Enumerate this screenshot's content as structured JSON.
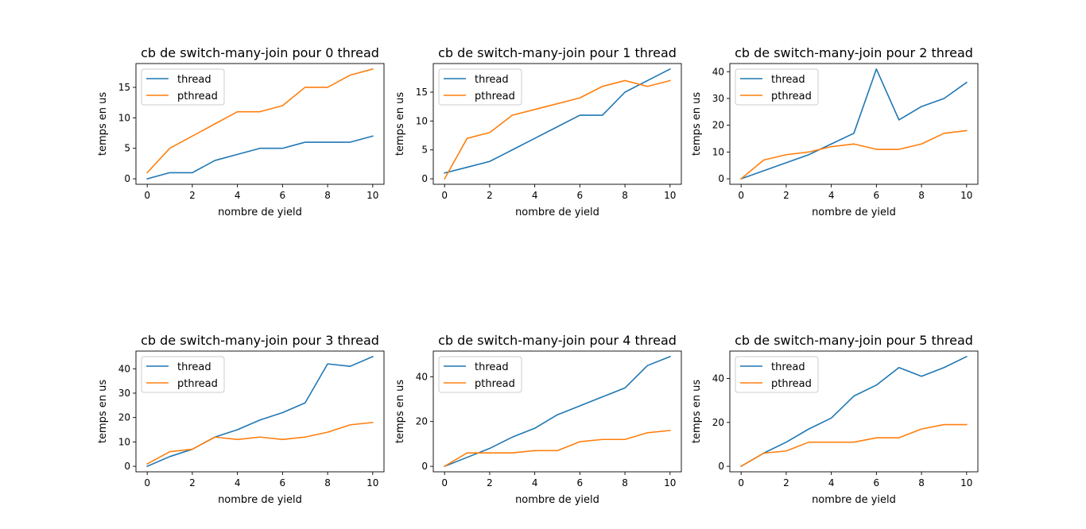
{
  "colors": {
    "thread": "#1f77b4",
    "pthread": "#ff7f0e"
  },
  "chart_data": [
    {
      "type": "line",
      "title": "cb de switch-many-join pour 0 thread",
      "xlabel": "nombre de yield",
      "ylabel": "temps en us",
      "x": [
        0,
        1,
        2,
        3,
        4,
        5,
        6,
        7,
        8,
        9,
        10
      ],
      "xticks": [
        0,
        2,
        4,
        6,
        8,
        10
      ],
      "yticks": [
        0,
        5,
        10,
        15
      ],
      "ylim": [
        -0.9,
        18.9
      ],
      "legend": "upper-left",
      "grid": false,
      "series": [
        {
          "name": "thread",
          "values": [
            0,
            1,
            1,
            3,
            4,
            5,
            5,
            6,
            6,
            6,
            7
          ]
        },
        {
          "name": "pthread",
          "values": [
            1,
            5,
            7,
            9,
            11,
            11,
            12,
            15,
            15,
            17,
            18
          ]
        }
      ]
    },
    {
      "type": "line",
      "title": "cb de switch-many-join pour 1 thread",
      "xlabel": "nombre de yield",
      "ylabel": "temps en us",
      "x": [
        0,
        1,
        2,
        3,
        4,
        5,
        6,
        7,
        8,
        9,
        10
      ],
      "xticks": [
        0,
        2,
        4,
        6,
        8,
        10
      ],
      "yticks": [
        0,
        5,
        10,
        15
      ],
      "ylim": [
        -0.95,
        19.95
      ],
      "legend": "upper-left",
      "grid": false,
      "series": [
        {
          "name": "thread",
          "values": [
            1,
            2,
            3,
            5,
            7,
            9,
            11,
            11,
            15,
            17,
            19
          ]
        },
        {
          "name": "pthread",
          "values": [
            0,
            7,
            8,
            11,
            12,
            13,
            14,
            16,
            17,
            16,
            17
          ]
        }
      ]
    },
    {
      "type": "line",
      "title": "cb de switch-many-join pour 2 thread",
      "xlabel": "nombre de yield",
      "ylabel": "temps en us",
      "x": [
        0,
        1,
        2,
        3,
        4,
        5,
        6,
        7,
        8,
        9,
        10
      ],
      "xticks": [
        0,
        2,
        4,
        6,
        8,
        10
      ],
      "yticks": [
        0,
        10,
        20,
        30,
        40
      ],
      "ylim": [
        -2.05,
        43.05
      ],
      "legend": "upper-left",
      "grid": false,
      "series": [
        {
          "name": "thread",
          "values": [
            0,
            3,
            6,
            9,
            13,
            17,
            41,
            22,
            27,
            30,
            36
          ]
        },
        {
          "name": "pthread",
          "values": [
            0,
            7,
            9,
            10,
            12,
            13,
            11,
            11,
            13,
            17,
            18
          ]
        }
      ]
    },
    {
      "type": "line",
      "title": "cb de switch-many-join pour 3 thread",
      "xlabel": "nombre de yield",
      "ylabel": "temps en us",
      "x": [
        0,
        1,
        2,
        3,
        4,
        5,
        6,
        7,
        8,
        9,
        10
      ],
      "xticks": [
        0,
        2,
        4,
        6,
        8,
        10
      ],
      "yticks": [
        0,
        10,
        20,
        30,
        40
      ],
      "ylim": [
        -2.25,
        47.25
      ],
      "legend": "upper-left",
      "grid": false,
      "series": [
        {
          "name": "thread",
          "values": [
            0,
            4,
            7,
            12,
            15,
            19,
            22,
            26,
            42,
            41,
            45
          ]
        },
        {
          "name": "pthread",
          "values": [
            1,
            6,
            7,
            12,
            11,
            12,
            11,
            12,
            14,
            17,
            18
          ]
        }
      ]
    },
    {
      "type": "line",
      "title": "cb de switch-many-join pour 4 thread",
      "xlabel": "nombre de yield",
      "ylabel": "temps en us",
      "x": [
        0,
        1,
        2,
        3,
        4,
        5,
        6,
        7,
        8,
        9,
        10
      ],
      "xticks": [
        0,
        2,
        4,
        6,
        8,
        10
      ],
      "yticks": [
        0,
        20,
        40
      ],
      "ylim": [
        -2.45,
        51.45
      ],
      "legend": "upper-left",
      "grid": false,
      "series": [
        {
          "name": "thread",
          "values": [
            0,
            4,
            8,
            13,
            17,
            23,
            27,
            31,
            35,
            45,
            49
          ]
        },
        {
          "name": "pthread",
          "values": [
            0,
            6,
            6,
            6,
            7,
            7,
            11,
            12,
            12,
            15,
            16
          ]
        }
      ]
    },
    {
      "type": "line",
      "title": "cb de switch-many-join pour 5 thread",
      "xlabel": "nombre de yield",
      "ylabel": "temps en us",
      "x": [
        0,
        1,
        2,
        3,
        4,
        5,
        6,
        7,
        8,
        9,
        10
      ],
      "xticks": [
        0,
        2,
        4,
        6,
        8,
        10
      ],
      "yticks": [
        0,
        20,
        40
      ],
      "ylim": [
        -2.5,
        52.5
      ],
      "legend": "upper-left",
      "grid": false,
      "series": [
        {
          "name": "thread",
          "values": [
            0,
            6,
            11,
            17,
            22,
            32,
            37,
            45,
            41,
            45,
            50
          ]
        },
        {
          "name": "pthread",
          "values": [
            0,
            6,
            7,
            11,
            11,
            11,
            13,
            13,
            17,
            19,
            19
          ]
        }
      ]
    }
  ]
}
